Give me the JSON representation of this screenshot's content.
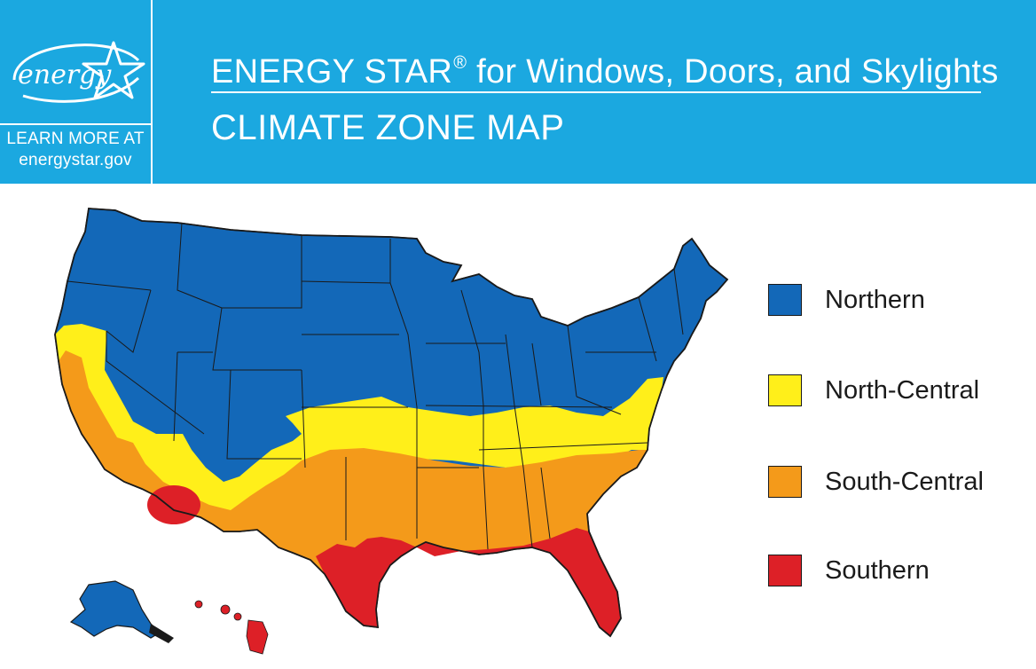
{
  "header": {
    "logo_script": "energy",
    "learn_more_line1": "LEARN MORE AT",
    "learn_more_line2": "energystar.gov",
    "title_main": "ENERGY STAR",
    "title_reg": "®",
    "title_rest": " for Windows, Doors, and Skylights",
    "subtitle": "CLIMATE ZONE MAP",
    "background_color": "#1ba8e0"
  },
  "legend": {
    "items": [
      {
        "label": "Northern",
        "color": "#1368b8"
      },
      {
        "label": "North-Central",
        "color": "#ffef1a"
      },
      {
        "label": "South-Central",
        "color": "#f49a1a"
      },
      {
        "label": "Southern",
        "color": "#dd2027"
      }
    ]
  },
  "map": {
    "colors": {
      "northern": "#1368b8",
      "north_central": "#ffef1a",
      "south_central": "#f49a1a",
      "southern": "#dd2027",
      "state_border": "#1a1a1a"
    }
  }
}
